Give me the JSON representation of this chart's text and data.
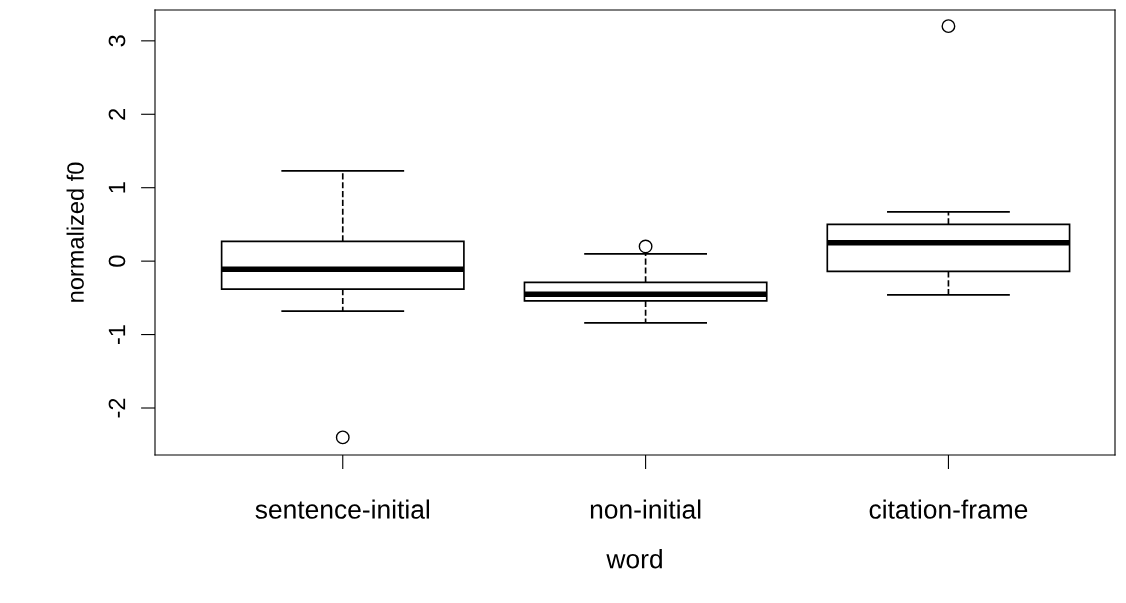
{
  "chart_data": {
    "type": "box",
    "xlabel": "word",
    "ylabel": "normalized f0",
    "categories": [
      "sentence-initial",
      "non-initial",
      "citation-frame"
    ],
    "boxes": [
      {
        "low": -0.68,
        "q1": -0.38,
        "median": -0.11,
        "q3": 0.27,
        "high": 1.23,
        "outliers": [
          -2.4
        ]
      },
      {
        "low": -0.84,
        "q1": -0.54,
        "median": -0.45,
        "q3": -0.29,
        "high": 0.1,
        "outliers": [
          0.2
        ]
      },
      {
        "low": -0.46,
        "q1": -0.14,
        "median": 0.25,
        "q3": 0.5,
        "high": 0.67,
        "outliers": [
          3.2
        ]
      }
    ],
    "ylim": [
      -2.64,
      3.42
    ],
    "yticks": [
      -2,
      -1,
      0,
      1,
      2,
      3
    ],
    "grid": false,
    "color": "#ffffff"
  }
}
